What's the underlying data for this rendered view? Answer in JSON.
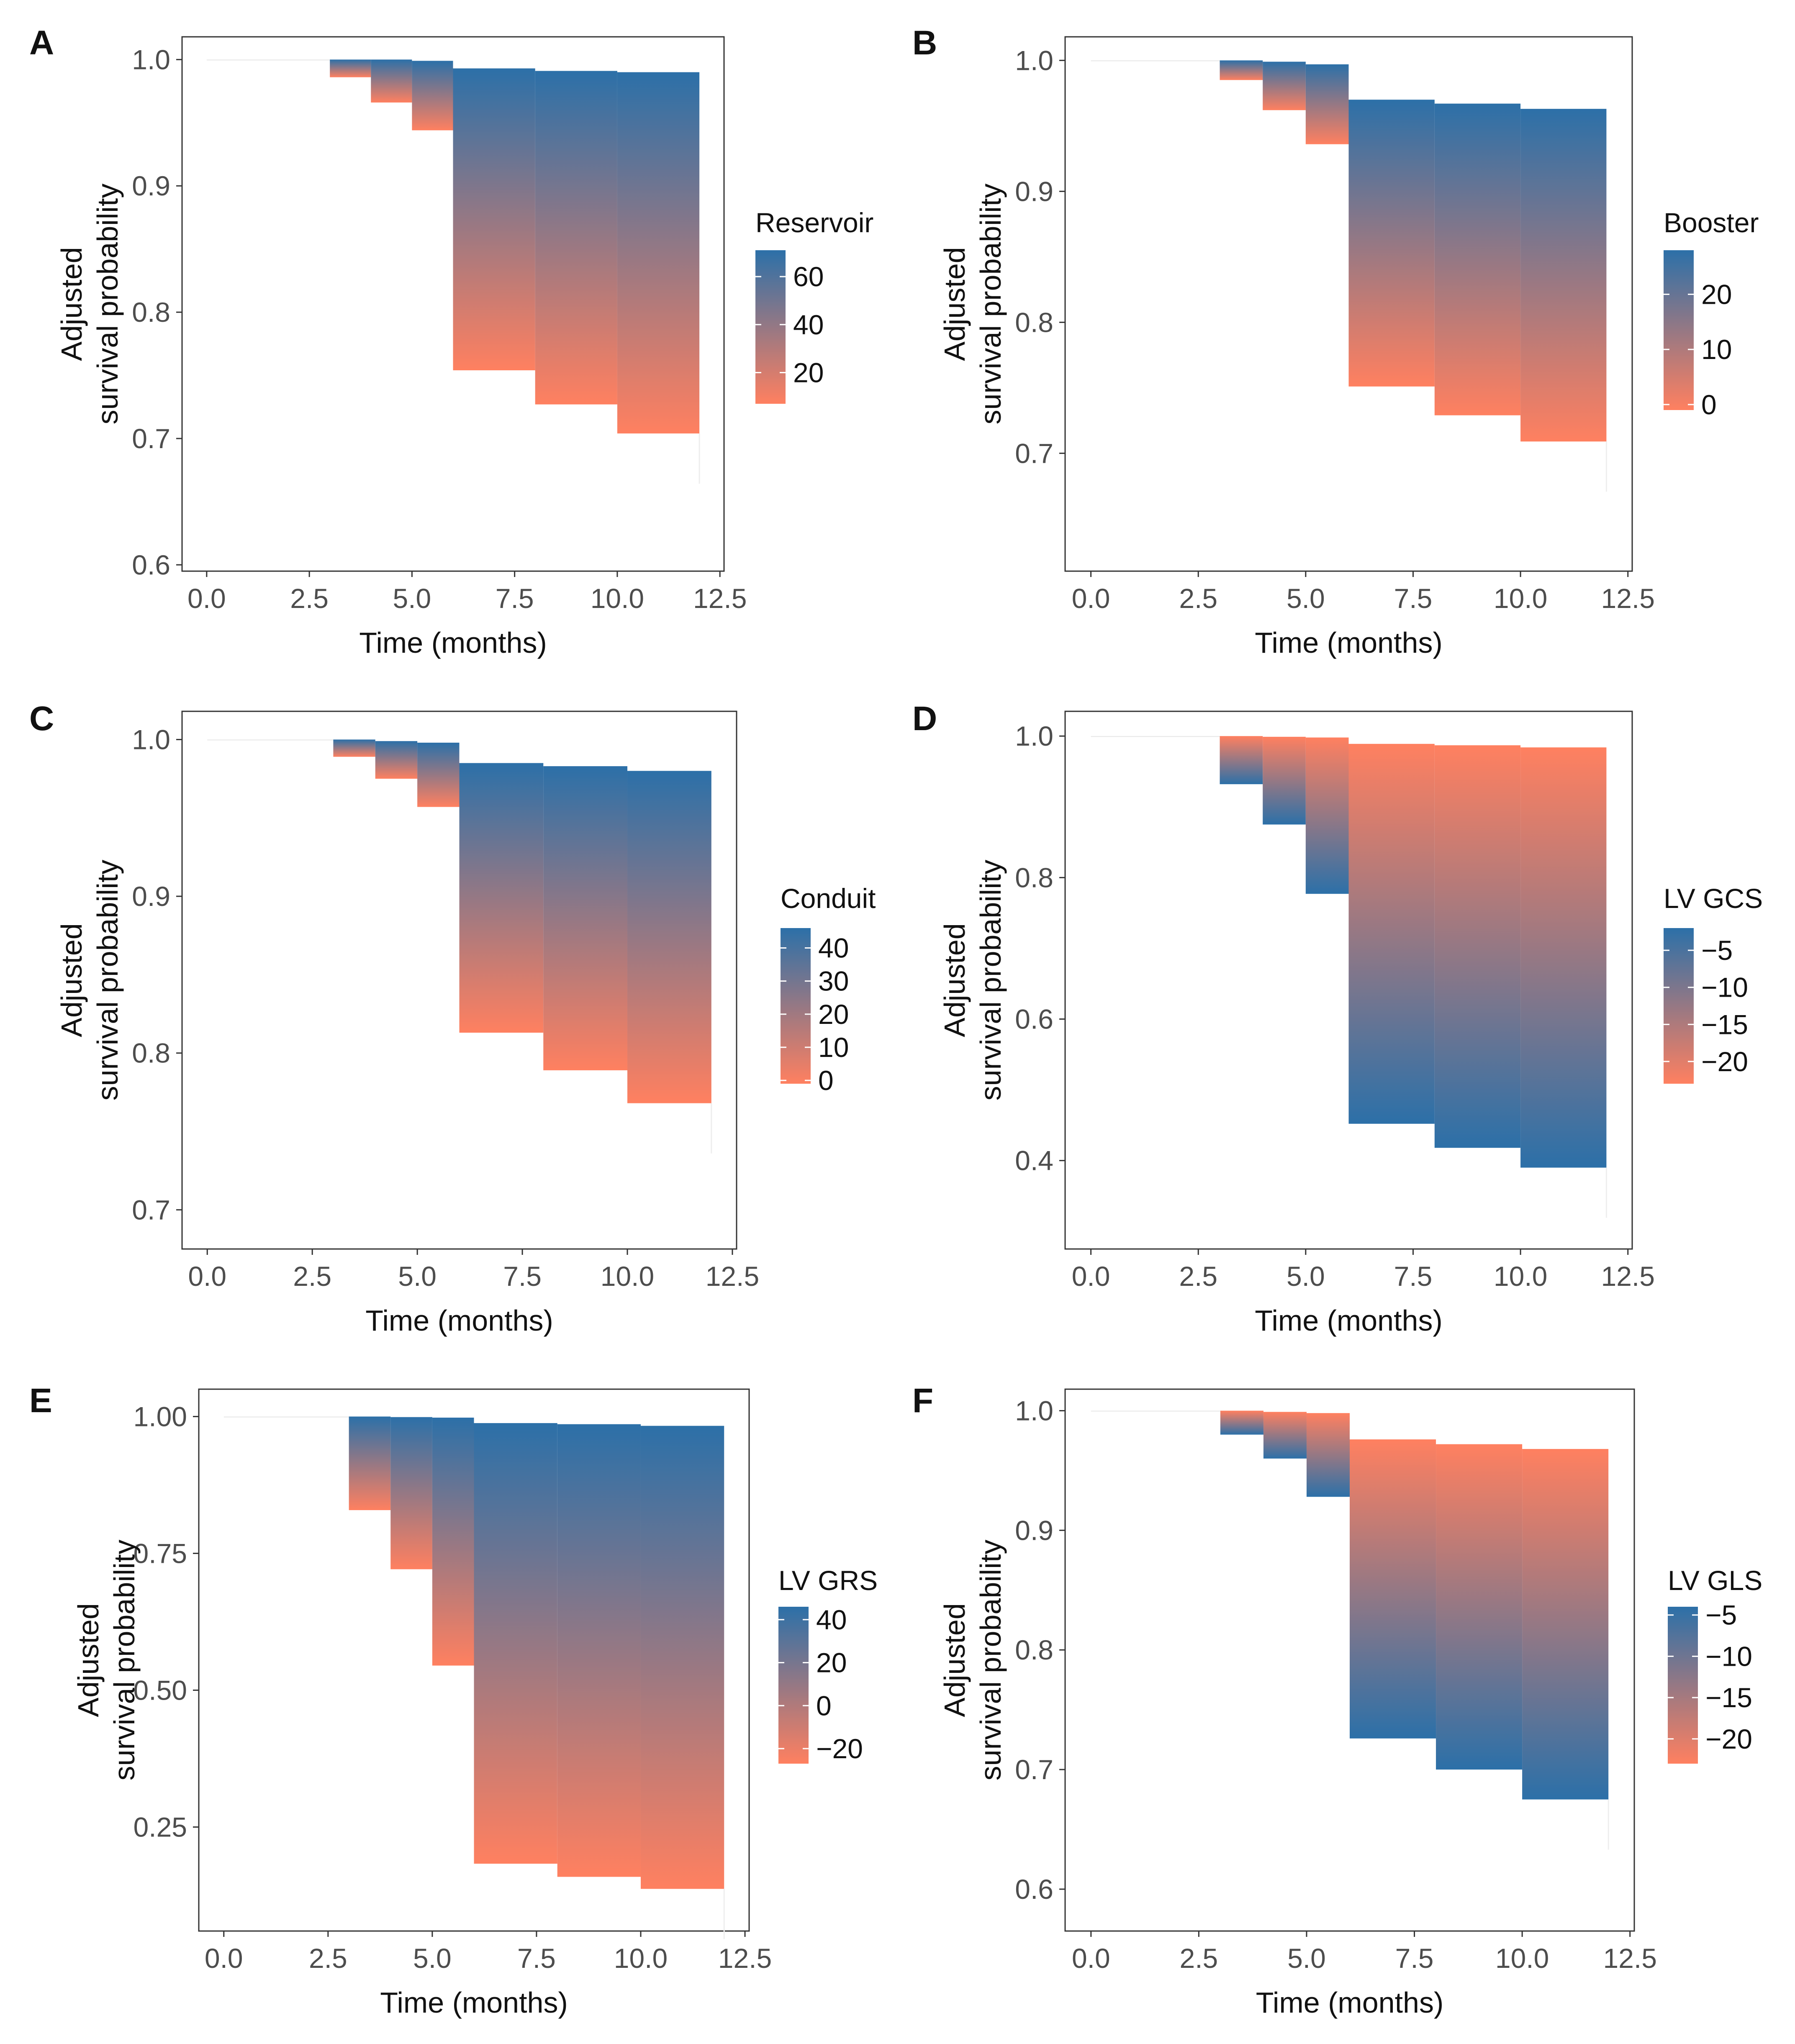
{
  "figure": {
    "low_color": "#ff8060",
    "high_color": "#2c70a8",
    "x_axis": {
      "label": "Time (months)",
      "ticks": [
        "0.0",
        "2.5",
        "5.0",
        "7.5",
        "10.0",
        "12.5"
      ],
      "range": [
        -0.6,
        12.6
      ]
    },
    "y_axis_label_line1": "Adjusted",
    "y_axis_label_line2": "survival probability"
  },
  "chart_data": [
    {
      "panel": "A",
      "type": "area",
      "title": "",
      "xlabel": "Time (months)",
      "ylabel": "Adjusted survival probability",
      "legend_title": "Reservoir",
      "legend_ticks": [
        "60",
        "40",
        "20"
      ],
      "legend_tick_values": [
        60,
        40,
        20
      ],
      "legend_range": [
        7,
        71
      ],
      "ylim": [
        0.595,
        1.018
      ],
      "yticks": [
        "1.0",
        "0.9",
        "0.8",
        "0.7",
        "0.6"
      ],
      "ytick_values": [
        1.0,
        0.9,
        0.8,
        0.7,
        0.6
      ],
      "gradient": "high_top",
      "intervals": [
        {
          "x0": 0,
          "x1": 3,
          "upper": 1.0,
          "lower": 1.0
        },
        {
          "x0": 3,
          "x1": 4,
          "upper": 1.0,
          "lower": 0.986
        },
        {
          "x0": 4,
          "x1": 5,
          "upper": 1.0,
          "lower": 0.966
        },
        {
          "x0": 5,
          "x1": 6,
          "upper": 0.999,
          "lower": 0.944
        },
        {
          "x0": 6,
          "x1": 8,
          "upper": 0.993,
          "lower": 0.754
        },
        {
          "x0": 8,
          "x1": 10,
          "upper": 0.991,
          "lower": 0.727
        },
        {
          "x0": 10,
          "x1": 12,
          "upper": 0.99,
          "lower": 0.704
        }
      ]
    },
    {
      "panel": "B",
      "type": "area",
      "title": "",
      "xlabel": "Time (months)",
      "ylabel": "Adjusted survival probability",
      "legend_title": "Booster",
      "legend_ticks": [
        "20",
        "10",
        "0"
      ],
      "legend_tick_values": [
        20,
        10,
        0
      ],
      "legend_range": [
        -1,
        28
      ],
      "ylim": [
        0.61,
        1.018
      ],
      "yticks": [
        "1.0",
        "0.9",
        "0.8",
        "0.7"
      ],
      "ytick_values": [
        1.0,
        0.9,
        0.8,
        0.7
      ],
      "gradient": "high_top",
      "intervals": [
        {
          "x0": 0,
          "x1": 3,
          "upper": 1.0,
          "lower": 1.0
        },
        {
          "x0": 3,
          "x1": 4,
          "upper": 1.0,
          "lower": 0.985
        },
        {
          "x0": 4,
          "x1": 5,
          "upper": 0.999,
          "lower": 0.962
        },
        {
          "x0": 5,
          "x1": 6,
          "upper": 0.997,
          "lower": 0.936
        },
        {
          "x0": 6,
          "x1": 8,
          "upper": 0.97,
          "lower": 0.751
        },
        {
          "x0": 8,
          "x1": 10,
          "upper": 0.967,
          "lower": 0.729
        },
        {
          "x0": 10,
          "x1": 12,
          "upper": 0.963,
          "lower": 0.709
        }
      ]
    },
    {
      "panel": "C",
      "type": "area",
      "title": "",
      "xlabel": "Time (months)",
      "ylabel": "Adjusted survival probability",
      "legend_title": "Conduit",
      "legend_ticks": [
        "40",
        "30",
        "20",
        "10",
        "0"
      ],
      "legend_tick_values": [
        40,
        30,
        20,
        10,
        0
      ],
      "legend_range": [
        -1,
        46
      ],
      "ylim": [
        0.675,
        1.018
      ],
      "yticks": [
        "1.0",
        "0.9",
        "0.8",
        "0.7"
      ],
      "ytick_values": [
        1.0,
        0.9,
        0.8,
        0.7
      ],
      "gradient": "high_top",
      "intervals": [
        {
          "x0": 0,
          "x1": 3,
          "upper": 1.0,
          "lower": 1.0
        },
        {
          "x0": 3,
          "x1": 4,
          "upper": 1.0,
          "lower": 0.989
        },
        {
          "x0": 4,
          "x1": 5,
          "upper": 0.999,
          "lower": 0.975
        },
        {
          "x0": 5,
          "x1": 6,
          "upper": 0.998,
          "lower": 0.957
        },
        {
          "x0": 6,
          "x1": 8,
          "upper": 0.985,
          "lower": 0.813
        },
        {
          "x0": 8,
          "x1": 10,
          "upper": 0.983,
          "lower": 0.789
        },
        {
          "x0": 10,
          "x1": 12,
          "upper": 0.98,
          "lower": 0.768
        }
      ]
    },
    {
      "panel": "D",
      "type": "area",
      "title": "",
      "xlabel": "Time (months)",
      "ylabel": "Adjusted survival probability",
      "legend_title": "LV GCS",
      "legend_ticks": [
        "−5",
        "−10",
        "−15",
        "−20"
      ],
      "legend_tick_values": [
        -5,
        -10,
        -15,
        -20
      ],
      "legend_range": [
        -23,
        -2
      ],
      "ylim": [
        0.275,
        1.035
      ],
      "yticks": [
        "1.0",
        "0.8",
        "0.6",
        "0.4"
      ],
      "ytick_values": [
        1.0,
        0.8,
        0.6,
        0.4
      ],
      "gradient": "high_bottom",
      "intervals": [
        {
          "x0": 0,
          "x1": 3,
          "upper": 1.0,
          "lower": 1.0
        },
        {
          "x0": 3,
          "x1": 4,
          "upper": 1.0,
          "lower": 0.932
        },
        {
          "x0": 4,
          "x1": 5,
          "upper": 0.999,
          "lower": 0.875
        },
        {
          "x0": 5,
          "x1": 6,
          "upper": 0.998,
          "lower": 0.777
        },
        {
          "x0": 6,
          "x1": 8,
          "upper": 0.989,
          "lower": 0.452
        },
        {
          "x0": 8,
          "x1": 10,
          "upper": 0.987,
          "lower": 0.418
        },
        {
          "x0": 10,
          "x1": 12,
          "upper": 0.984,
          "lower": 0.39
        }
      ]
    },
    {
      "panel": "E",
      "type": "area",
      "title": "",
      "xlabel": "Time (months)",
      "ylabel": "Adjusted survival probability",
      "legend_title": "LV GRS",
      "legend_ticks": [
        "40",
        "20",
        "0",
        "−20"
      ],
      "legend_tick_values": [
        40,
        20,
        0,
        -20
      ],
      "legend_range": [
        -27,
        46
      ],
      "ylim": [
        0.06,
        1.05
      ],
      "yticks": [
        "1.00",
        "0.75",
        "0.50",
        "0.25"
      ],
      "ytick_values": [
        1.0,
        0.75,
        0.5,
        0.25
      ],
      "gradient": "high_top",
      "intervals": [
        {
          "x0": 0,
          "x1": 3,
          "upper": 1.0,
          "lower": 1.0
        },
        {
          "x0": 3,
          "x1": 4,
          "upper": 1.0,
          "lower": 0.829
        },
        {
          "x0": 4,
          "x1": 5,
          "upper": 0.999,
          "lower": 0.721
        },
        {
          "x0": 5,
          "x1": 6,
          "upper": 0.998,
          "lower": 0.545
        },
        {
          "x0": 6,
          "x1": 8,
          "upper": 0.988,
          "lower": 0.183
        },
        {
          "x0": 8,
          "x1": 10,
          "upper": 0.986,
          "lower": 0.159
        },
        {
          "x0": 10,
          "x1": 12,
          "upper": 0.983,
          "lower": 0.137
        }
      ]
    },
    {
      "panel": "F",
      "type": "area",
      "title": "",
      "xlabel": "Time (months)",
      "ylabel": "Adjusted survival probability",
      "legend_title": "LV GLS",
      "legend_ticks": [
        "−5",
        "−10",
        "−15",
        "−20"
      ],
      "legend_tick_values": [
        -5,
        -10,
        -15,
        -20
      ],
      "legend_range": [
        -23,
        -4
      ],
      "ylim": [
        0.565,
        1.018
      ],
      "yticks": [
        "1.0",
        "0.9",
        "0.8",
        "0.7",
        "0.6"
      ],
      "ytick_values": [
        1.0,
        0.9,
        0.8,
        0.7,
        0.6
      ],
      "gradient": "high_bottom",
      "intervals": [
        {
          "x0": 0,
          "x1": 3,
          "upper": 1.0,
          "lower": 1.0
        },
        {
          "x0": 3,
          "x1": 4,
          "upper": 1.0,
          "lower": 0.98
        },
        {
          "x0": 4,
          "x1": 5,
          "upper": 0.999,
          "lower": 0.96
        },
        {
          "x0": 5,
          "x1": 6,
          "upper": 0.998,
          "lower": 0.928
        },
        {
          "x0": 6,
          "x1": 8,
          "upper": 0.976,
          "lower": 0.726
        },
        {
          "x0": 8,
          "x1": 10,
          "upper": 0.972,
          "lower": 0.7
        },
        {
          "x0": 10,
          "x1": 12,
          "upper": 0.968,
          "lower": 0.675
        }
      ]
    }
  ]
}
